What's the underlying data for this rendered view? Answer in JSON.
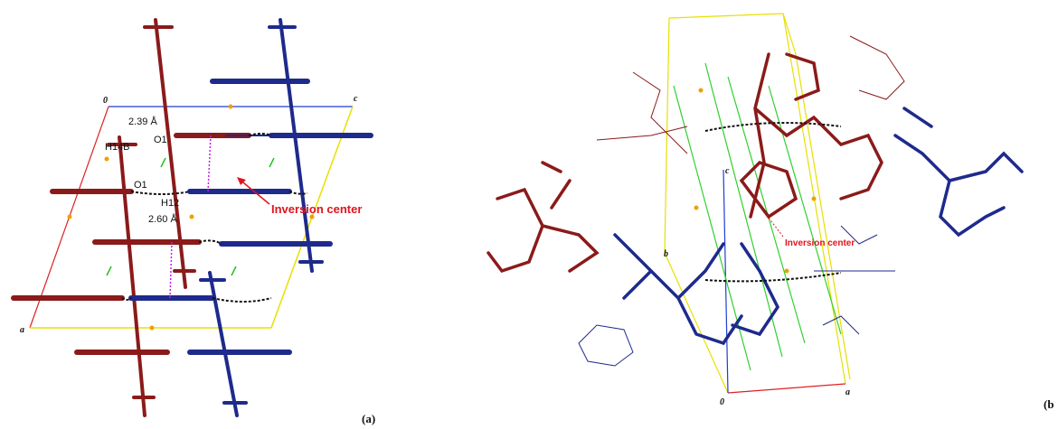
{
  "panel_a": {
    "caption": "(a)",
    "axis_labels": {
      "origin": "0",
      "c": "c",
      "a": "a"
    },
    "annotations": [
      "2.39 Å",
      "H14B",
      "O1",
      "O1",
      "H12",
      "2.60 Å",
      "Inversion center"
    ]
  },
  "panel_b": {
    "caption": "(b",
    "axis_labels": {
      "c": "c",
      "b": "b",
      "origin": "0",
      "a": "a"
    },
    "annotations": [
      "Inversion center"
    ]
  }
}
